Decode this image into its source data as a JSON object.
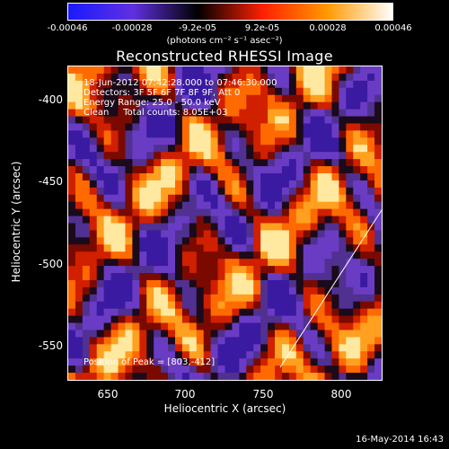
{
  "colorbar": {
    "ticks": [
      "-0.00046",
      "-0.00028",
      "-9.2e-05",
      "9.2e-05",
      "0.00028",
      "0.00046"
    ],
    "units": "(photons cm⁻² s⁻¹ asec⁻²)",
    "colors": [
      "#1a1aff",
      "#6030e0",
      "#000000",
      "#ff2000",
      "#ff9a00",
      "#ffffff"
    ]
  },
  "title": "Reconstructed RHESSI Image",
  "info": {
    "time": "18-Jun-2012 07:42:28.000 to 07:46:30.000",
    "detectors": "Detectors: 3F 5F 6F 7F 8F 9F, Att 0",
    "energy": "Energy Range: 25.0 - 50.0 keV",
    "clean": "Clean     Total counts: 8.05E+03"
  },
  "peak": "Position of Peak = [803,-412]",
  "chart_data": {
    "type": "heatmap",
    "title": "Reconstructed RHESSI Image",
    "xlabel": "Heliocentric X (arcsec)",
    "ylabel": "Heliocentric Y (arcsec)",
    "xlim": [
      628,
      820
    ],
    "ylim": [
      -574,
      -383
    ],
    "xticks": [
      "650",
      "700",
      "750",
      "800"
    ],
    "yticks": [
      "-400",
      "-450",
      "-500",
      "-550"
    ],
    "peak_position": [
      803,
      -412
    ]
  },
  "datestamp": "16-May-2014 16:43"
}
